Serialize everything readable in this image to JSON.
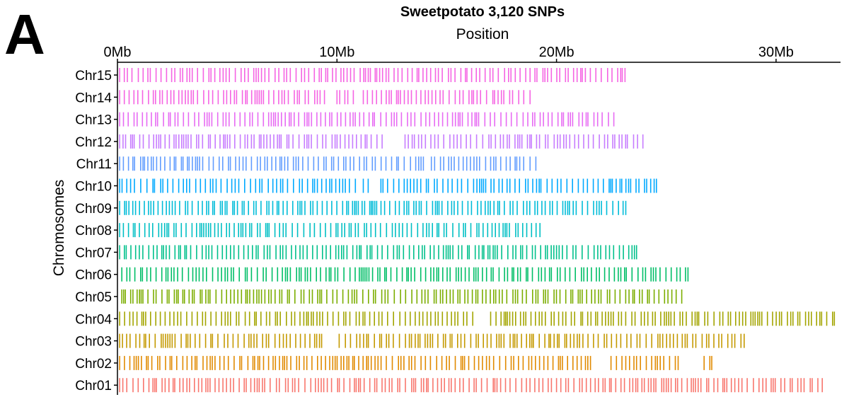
{
  "panel_label": "A",
  "chart_data": {
    "type": "scatter",
    "title": "Sweetpotato 3,120 SNPs",
    "xlabel": "Position",
    "ylabel": "Chromosomes",
    "x_axis_position": "top",
    "x_unit": "Mb",
    "xlim": [
      0,
      32.7
    ],
    "x_ticks": [
      0,
      10,
      20,
      30
    ],
    "x_tick_labels": [
      "0Mb",
      "10Mb",
      "20Mb",
      "30Mb"
    ],
    "categories": [
      "Chr15",
      "Chr14",
      "Chr13",
      "Chr12",
      "Chr11",
      "Chr10",
      "Chr09",
      "Chr08",
      "Chr07",
      "Chr06",
      "Chr05",
      "Chr04",
      "Chr03",
      "Chr02",
      "Chr01"
    ],
    "grid": false,
    "legend": "none",
    "marker": "vertical tick",
    "series": [
      {
        "chromosome": "Chr15",
        "color": "#F564E3",
        "segments": [
          [
            0.1,
            23.2
          ]
        ],
        "gaps": []
      },
      {
        "chromosome": "Chr14",
        "color": "#F564E3",
        "segments": [
          [
            0.1,
            9.5
          ],
          [
            10.0,
            10.8
          ],
          [
            11.2,
            19.0
          ]
        ],
        "gaps": []
      },
      {
        "chromosome": "Chr13",
        "color": "#E76BF3",
        "segments": [
          [
            0.1,
            22.8
          ]
        ],
        "gaps": []
      },
      {
        "chromosome": "Chr12",
        "color": "#C77CFF",
        "segments": [
          [
            0.1,
            12.3
          ],
          [
            13.1,
            24.1
          ]
        ],
        "gaps": [
          [
            12.3,
            13.1
          ]
        ]
      },
      {
        "chromosome": "Chr11",
        "color": "#619CFF",
        "segments": [
          [
            0.1,
            14.0
          ],
          [
            14.3,
            19.1
          ]
        ],
        "gaps": []
      },
      {
        "chromosome": "Chr10",
        "color": "#00A9FF",
        "segments": [
          [
            0.1,
            10.9
          ],
          [
            11.2,
            11.6
          ],
          [
            12.0,
            24.7
          ]
        ],
        "gaps": []
      },
      {
        "chromosome": "Chr09",
        "color": "#00BCD8",
        "segments": [
          [
            0.1,
            23.3
          ]
        ],
        "gaps": []
      },
      {
        "chromosome": "Chr08",
        "color": "#00BFC4",
        "segments": [
          [
            0.1,
            19.4
          ]
        ],
        "gaps": []
      },
      {
        "chromosome": "Chr07",
        "color": "#00C08B",
        "segments": [
          [
            0.1,
            23.8
          ]
        ],
        "gaps": []
      },
      {
        "chromosome": "Chr06",
        "color": "#00BE67",
        "segments": [
          [
            0.2,
            26.0
          ]
        ],
        "gaps": []
      },
      {
        "chromosome": "Chr05",
        "color": "#7CAE00",
        "segments": [
          [
            0.2,
            25.8
          ]
        ],
        "gaps": []
      },
      {
        "chromosome": "Chr04",
        "color": "#A3A500",
        "segments": [
          [
            0.1,
            16.3
          ],
          [
            17.0,
            32.7
          ]
        ],
        "gaps": [
          [
            16.3,
            17.0
          ]
        ]
      },
      {
        "chromosome": "Chr03",
        "color": "#C49A00",
        "segments": [
          [
            0.1,
            9.4
          ],
          [
            10.1,
            28.6
          ]
        ],
        "gaps": []
      },
      {
        "chromosome": "Chr02",
        "color": "#E18A00",
        "segments": [
          [
            0.1,
            27.3
          ]
        ],
        "gaps": [
          [
            21.6,
            22.3
          ],
          [
            25.8,
            26.7
          ]
        ]
      },
      {
        "chromosome": "Chr01",
        "color": "#F8766D",
        "segments": [
          [
            0.1,
            32.2
          ]
        ],
        "gaps": []
      }
    ]
  }
}
